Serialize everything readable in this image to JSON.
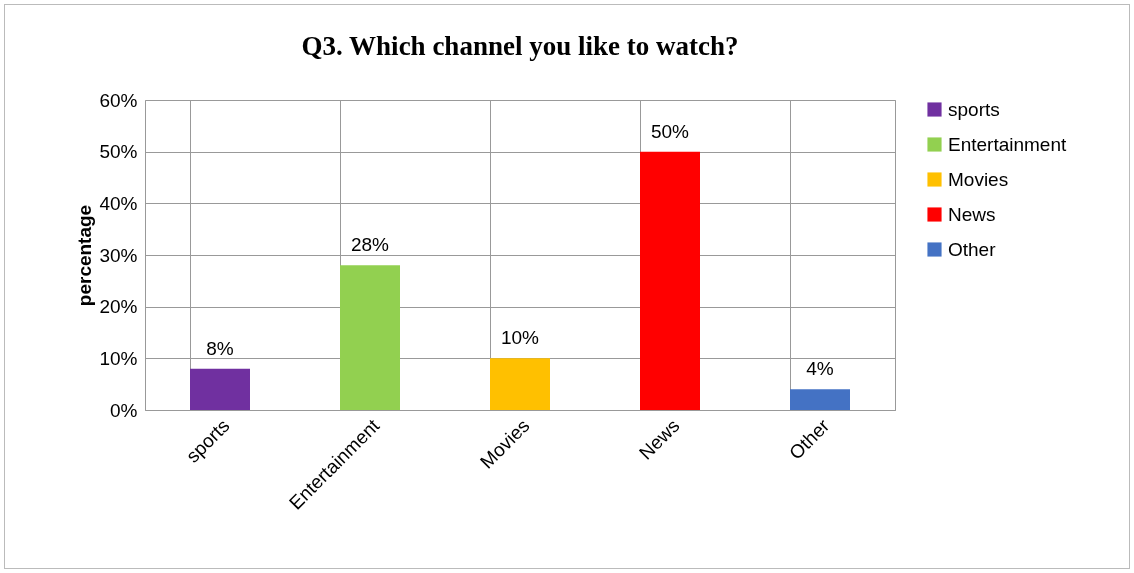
{
  "chart_data": {
    "type": "bar",
    "title": "Q3. Which channel you like to watch?",
    "ylabel": "percentage",
    "categories": [
      "sports",
      "Entertainment",
      "Movies",
      "News",
      "Other"
    ],
    "series": [
      {
        "name": "sports",
        "color": "#7030a0",
        "values": [
          8,
          null,
          null,
          null,
          null
        ],
        "value_labels": [
          "8%",
          null,
          null,
          null,
          null
        ]
      },
      {
        "name": "Entertainment",
        "color": "#92d050",
        "values": [
          null,
          28,
          null,
          null,
          null
        ],
        "value_labels": [
          null,
          "28%",
          null,
          null,
          null
        ]
      },
      {
        "name": "Movies",
        "color": "#ffc000",
        "values": [
          null,
          null,
          10,
          null,
          null
        ],
        "value_labels": [
          null,
          null,
          "10%",
          null,
          null
        ]
      },
      {
        "name": "News",
        "color": "#ff0000",
        "values": [
          null,
          null,
          null,
          50,
          null
        ],
        "value_labels": [
          null,
          null,
          null,
          "50%",
          null
        ]
      },
      {
        "name": "Other",
        "color": "#4472c4",
        "values": [
          null,
          null,
          null,
          null,
          4
        ],
        "value_labels": [
          null,
          null,
          null,
          null,
          "4%"
        ]
      }
    ],
    "ylim": [
      0,
      60
    ],
    "yticks": [
      {
        "value": 0,
        "label": "0%"
      },
      {
        "value": 10,
        "label": "10%"
      },
      {
        "value": 20,
        "label": "20%"
      },
      {
        "value": 30,
        "label": "30%"
      },
      {
        "value": 40,
        "label": "40%"
      },
      {
        "value": 50,
        "label": "50%"
      },
      {
        "value": 60,
        "label": "60%"
      }
    ],
    "grid": true,
    "legend": "right"
  }
}
